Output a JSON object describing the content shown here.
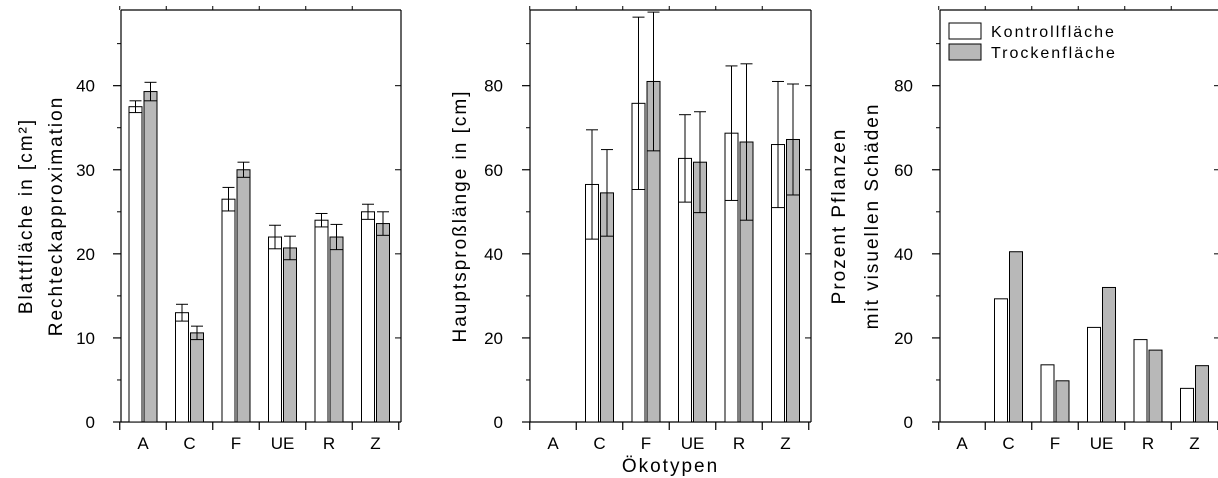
{
  "colors": {
    "kontroll": "#ffffff",
    "trocken": "#b8b8b8",
    "axis": "#000000"
  },
  "chart_data": [
    {
      "type": "bar",
      "categories": [
        "A",
        "C",
        "F",
        "UE",
        "R",
        "Z"
      ],
      "ylabel_lines": [
        "Blattfläche in [cm²]",
        "Rechteckapproximation"
      ],
      "ylim": [
        0,
        49
      ],
      "yticks": [
        0,
        10,
        20,
        30,
        40
      ],
      "error_bars": true,
      "series": [
        {
          "name": "Kontrollfläche",
          "color": "#ffffff",
          "values": [
            37.5,
            13.0,
            26.5,
            22.0,
            24.0,
            25.0
          ],
          "errors": [
            0.7,
            1.0,
            1.4,
            1.4,
            0.8,
            0.9
          ]
        },
        {
          "name": "Trockenfläche",
          "color": "#b8b8b8",
          "values": [
            39.3,
            10.6,
            30.0,
            20.7,
            22.0,
            23.6
          ],
          "errors": [
            1.1,
            0.8,
            0.9,
            1.4,
            1.5,
            1.4
          ]
        }
      ]
    },
    {
      "type": "bar",
      "categories": [
        "A",
        "C",
        "F",
        "UE",
        "R",
        "Z"
      ],
      "xlabel": "Ökotypen",
      "ylabel": "Hauptsproßlänge in [cm]",
      "ylim": [
        0,
        98
      ],
      "yticks": [
        0,
        20,
        40,
        60,
        80
      ],
      "error_bars": true,
      "series": [
        {
          "name": "Kontrollfläche",
          "color": "#ffffff",
          "values": [
            0,
            56.5,
            75.8,
            62.7,
            68.7,
            66.0
          ],
          "errors": [
            0,
            13.0,
            20.5,
            10.4,
            16.0,
            15.0
          ]
        },
        {
          "name": "Trockenfläche",
          "color": "#b8b8b8",
          "values": [
            0,
            54.5,
            81.0,
            61.8,
            66.6,
            67.2
          ],
          "errors": [
            0,
            10.3,
            16.5,
            12.0,
            18.6,
            13.2
          ]
        }
      ]
    },
    {
      "type": "bar",
      "categories": [
        "A",
        "C",
        "F",
        "UE",
        "R",
        "Z"
      ],
      "ylabel_lines": [
        "Prozent Pflanzen",
        "mit visuellen Schäden"
      ],
      "ylim": [
        0,
        98
      ],
      "yticks": [
        0,
        20,
        40,
        60,
        80
      ],
      "legend": {
        "position": "top-left",
        "entries": [
          "Kontrollfläche",
          "Trockenfläche"
        ]
      },
      "series": [
        {
          "name": "Kontrollfläche",
          "color": "#ffffff",
          "values": [
            0,
            29.3,
            13.6,
            22.5,
            19.6,
            8.0
          ]
        },
        {
          "name": "Trockenfläche",
          "color": "#b8b8b8",
          "values": [
            0,
            40.5,
            9.8,
            32.0,
            17.1,
            13.4
          ]
        }
      ]
    }
  ]
}
